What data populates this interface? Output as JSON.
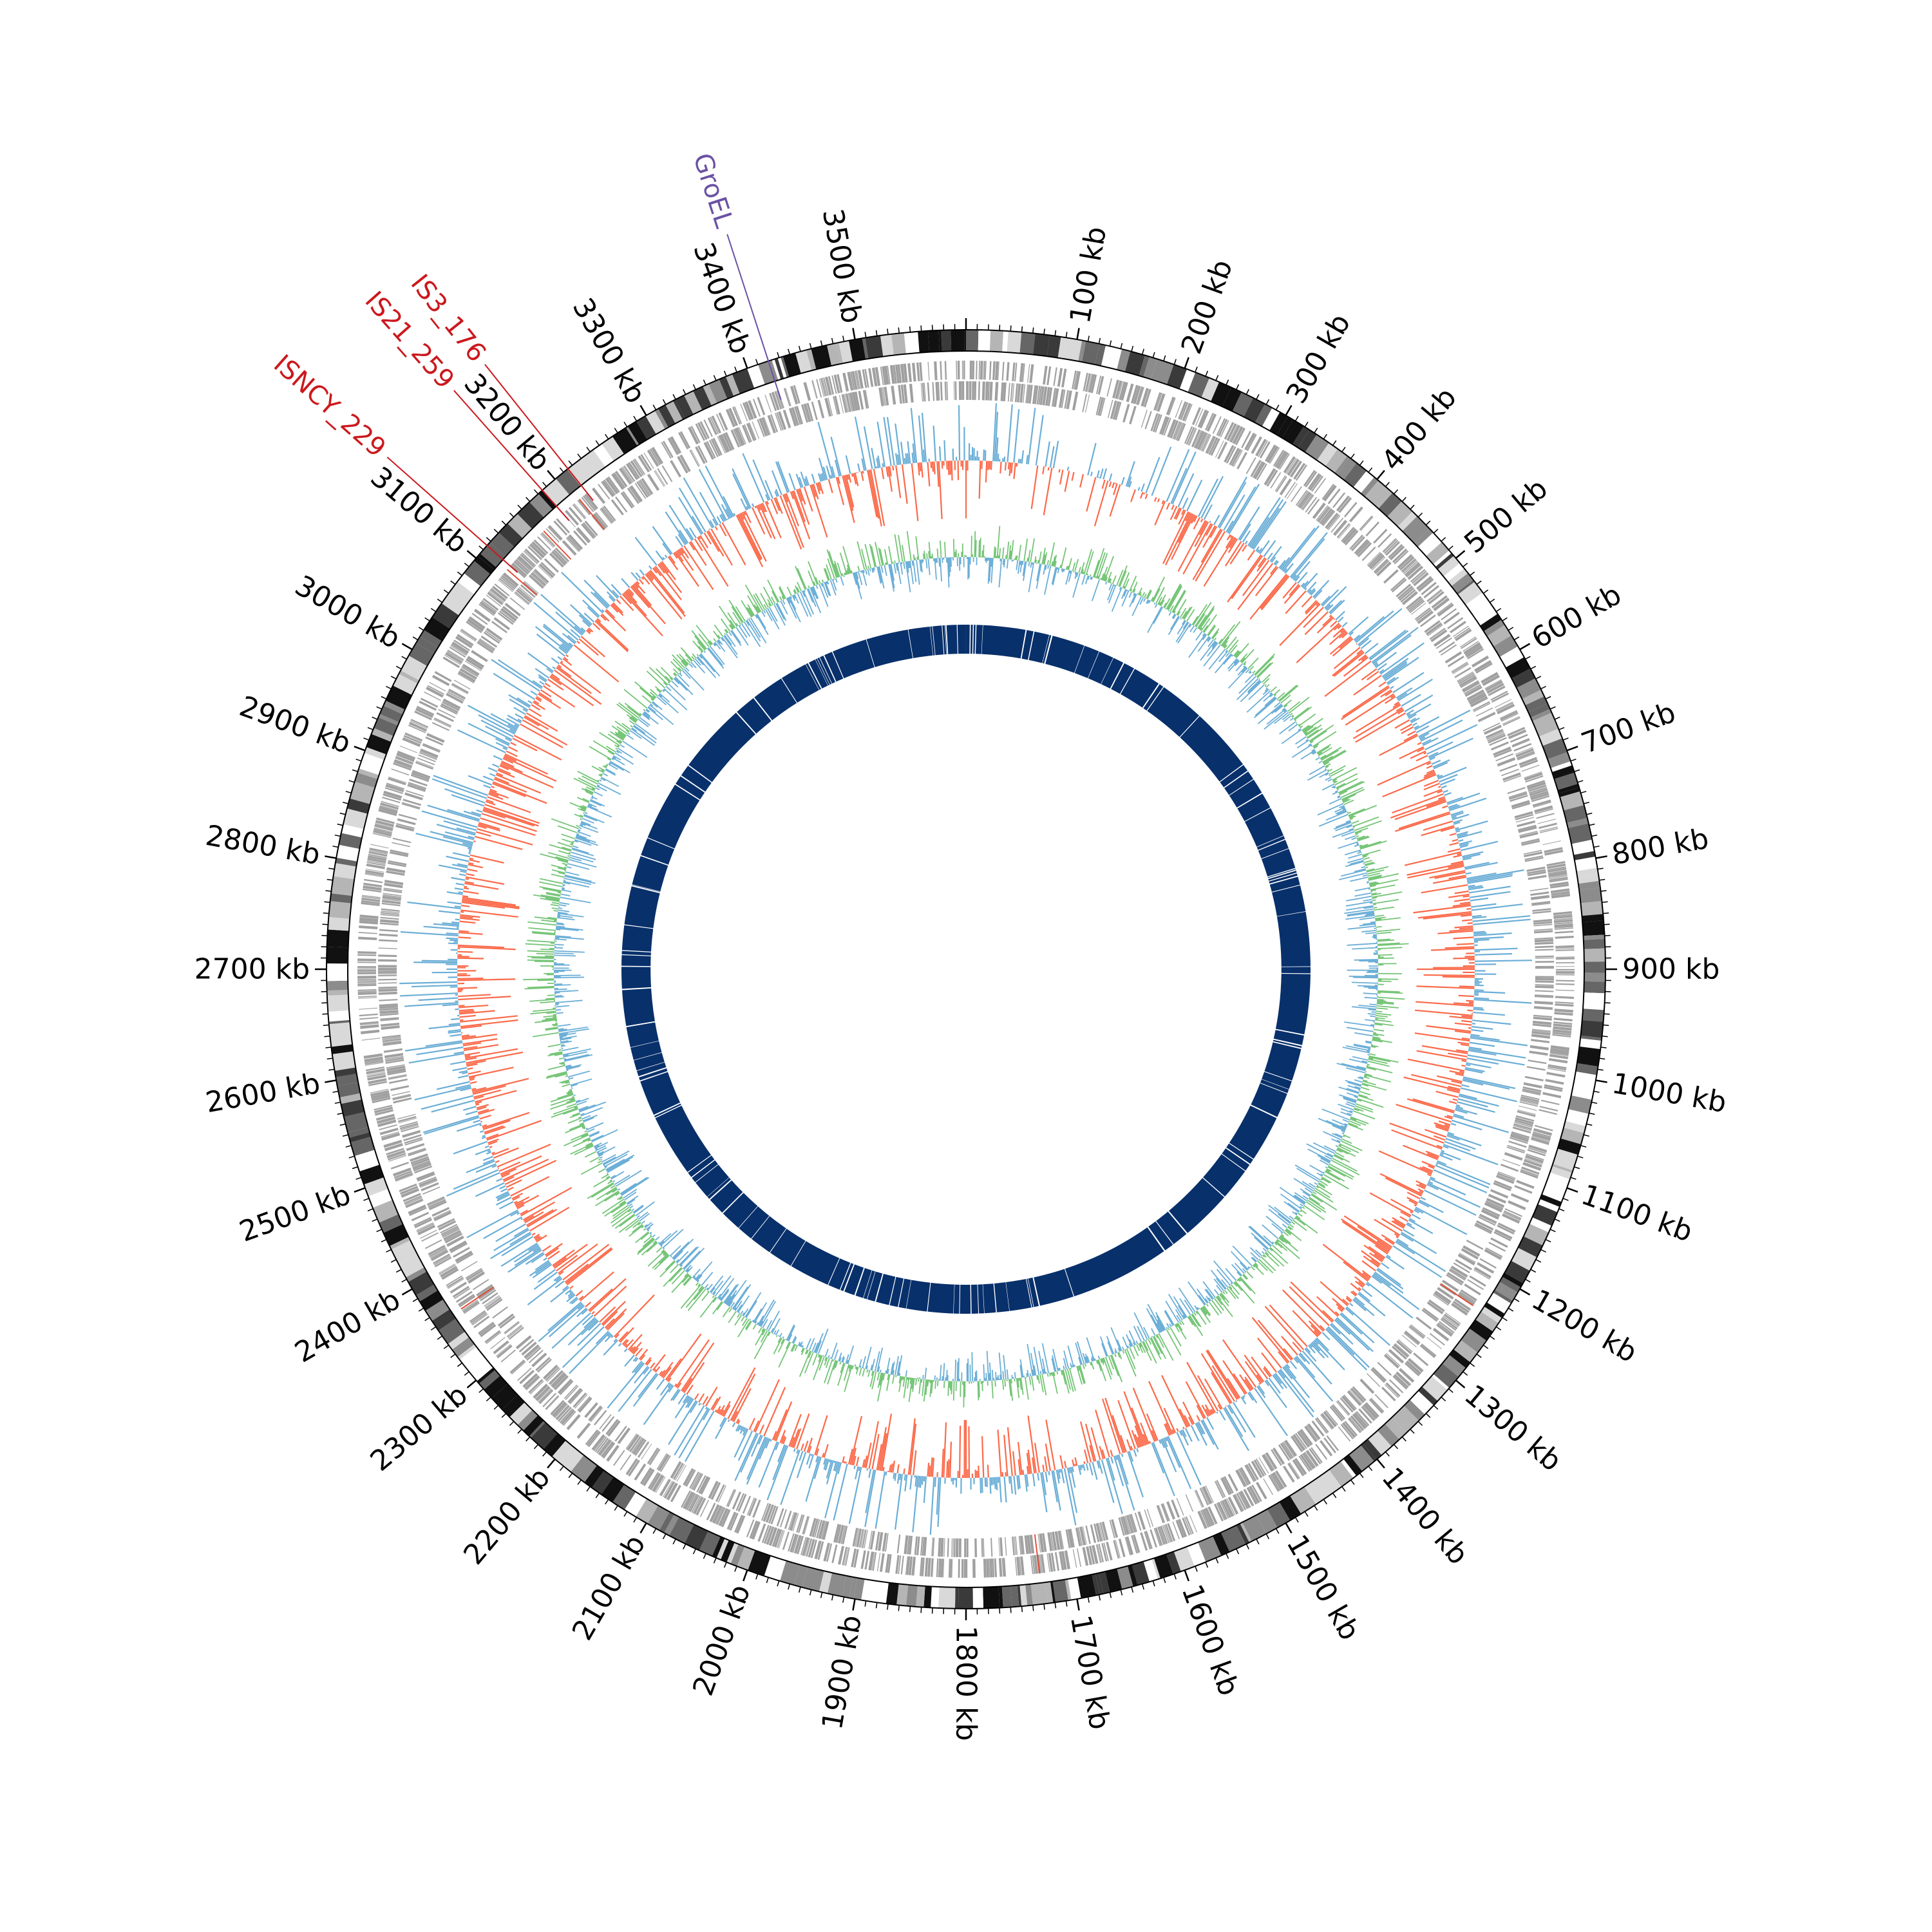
{
  "plot": {
    "genome_length_kb": 3600,
    "tick_unit": "kb",
    "tick_labels": [
      "100 kb",
      "200 kb",
      "300 kb",
      "400 kb",
      "500 kb",
      "600 kb",
      "700 kb",
      "800 kb",
      "900 kb",
      "1000 kb",
      "1100 kb",
      "1200 kb",
      "1300 kb",
      "1400 kb",
      "1500 kb",
      "1600 kb",
      "1700 kb",
      "1800 kb",
      "1900 kb",
      "2000 kb",
      "2100 kb",
      "2200 kb",
      "2300 kb",
      "2400 kb",
      "2500 kb",
      "2600 kb",
      "2700 kb",
      "2800 kb",
      "2900 kb",
      "3000 kb",
      "3100 kb",
      "3200 kb",
      "3300 kb",
      "3400 kb",
      "3500 kb"
    ],
    "tick_positions_kb": [
      100,
      200,
      300,
      400,
      500,
      600,
      700,
      800,
      900,
      1000,
      1100,
      1200,
      1300,
      1400,
      1500,
      1600,
      1700,
      1800,
      1900,
      2000,
      2100,
      2200,
      2300,
      2400,
      2500,
      2600,
      2700,
      2800,
      2900,
      3000,
      3100,
      3200,
      3300,
      3400,
      3500
    ],
    "annotations": [
      {
        "label": "GroEL",
        "position_kb": 3420,
        "color": "#6a51a3"
      },
      {
        "label": "IS3_176",
        "position_kb": 3215,
        "color": "#cb181d"
      },
      {
        "label": "IS21_259",
        "position_kb": 3185,
        "color": "#cb181d"
      },
      {
        "label": "ISNCY_229",
        "position_kb": 3115,
        "color": "#cb181d"
      }
    ],
    "colors": {
      "ideogram": [
        "#111111",
        "#3a3a3a",
        "#666666",
        "#8c8c8c",
        "#b5b5b5",
        "#d9d9d9",
        "#ffffff"
      ],
      "genes": "#a0a0a0",
      "gc_skew_pos": "#6baed6",
      "gc_skew_neg": "#fb6a4a",
      "gc_content": "#74c476",
      "inner_ring": "#08306b",
      "ticks": "#000000"
    }
  }
}
